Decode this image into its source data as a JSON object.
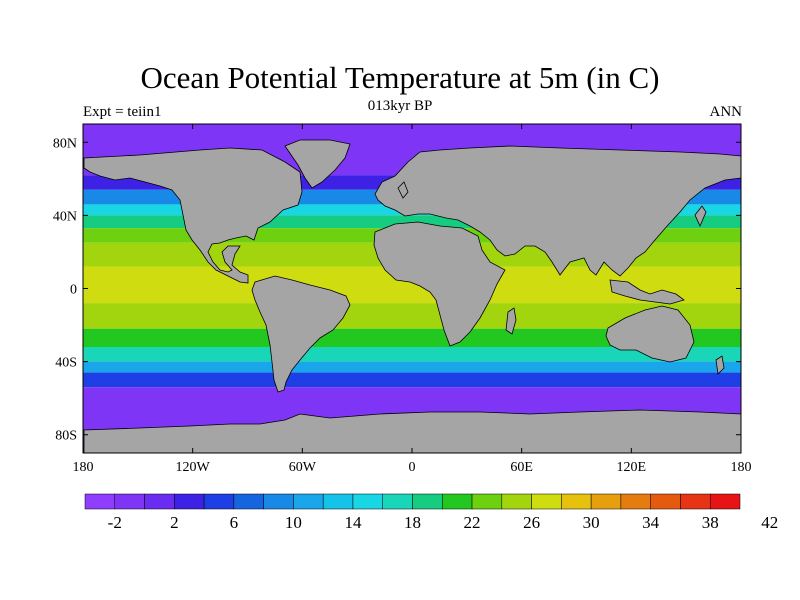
{
  "header": {
    "title": "Ocean Potential Temperature at 5m (in C)",
    "subtitle": "013kyr BP",
    "left_label": "Expt = teiin1",
    "right_label": "ANN"
  },
  "map": {
    "projection": "cylindrical-equidistant",
    "lon_range": [
      -180,
      180
    ],
    "lat_range": [
      -90,
      90
    ],
    "land_color": "#a5a5a5",
    "x_ticks": [
      {
        "value": -180,
        "label": "180"
      },
      {
        "value": -120,
        "label": "120W"
      },
      {
        "value": -60,
        "label": "60W"
      },
      {
        "value": 0,
        "label": "0"
      },
      {
        "value": 60,
        "label": "60E"
      },
      {
        "value": 120,
        "label": "120E"
      },
      {
        "value": 180,
        "label": "180"
      }
    ],
    "y_ticks": [
      {
        "value": 80,
        "label": "80N"
      },
      {
        "value": 40,
        "label": "40N"
      },
      {
        "value": 0,
        "label": "0"
      },
      {
        "value": -40,
        "label": "40S"
      },
      {
        "value": -80,
        "label": "80S"
      }
    ],
    "temperature_bands": [
      {
        "lat_max": 90,
        "lat_min": 62,
        "temp": -2
      },
      {
        "lat_max": 62,
        "lat_min": 54,
        "temp": 2
      },
      {
        "lat_max": 54,
        "lat_min": 46,
        "temp": 8
      },
      {
        "lat_max": 46,
        "lat_min": 40,
        "temp": 14
      },
      {
        "lat_max": 40,
        "lat_min": 33,
        "temp": 18
      },
      {
        "lat_max": 33,
        "lat_min": 25,
        "temp": 22
      },
      {
        "lat_max": 25,
        "lat_min": 12,
        "temp": 25
      },
      {
        "lat_max": 12,
        "lat_min": -8,
        "temp": 27
      },
      {
        "lat_max": -8,
        "lat_min": -22,
        "temp": 24
      },
      {
        "lat_max": -22,
        "lat_min": -32,
        "temp": 20
      },
      {
        "lat_max": -32,
        "lat_min": -40,
        "temp": 16
      },
      {
        "lat_max": -40,
        "lat_min": -46,
        "temp": 10
      },
      {
        "lat_max": -46,
        "lat_min": -54,
        "temp": 4
      },
      {
        "lat_max": -54,
        "lat_min": -90,
        "temp": -1
      }
    ]
  },
  "colorbar": {
    "colors": [
      "#8f3dff",
      "#7f35f5",
      "#6a2cf0",
      "#3d22e6",
      "#1f3fe6",
      "#1565e0",
      "#1889e6",
      "#1aa6ea",
      "#15c2e8",
      "#18d6e3",
      "#1ad6b8",
      "#15cc80",
      "#22c81f",
      "#6ed110",
      "#a3d50e",
      "#cfdc10",
      "#e6c10d",
      "#e6a00d",
      "#e67c10",
      "#e65a10",
      "#e63414",
      "#e61414"
    ],
    "tick_labels": [
      "-2",
      "2",
      "6",
      "10",
      "14",
      "18",
      "22",
      "26",
      "30",
      "34",
      "38",
      "42"
    ]
  }
}
